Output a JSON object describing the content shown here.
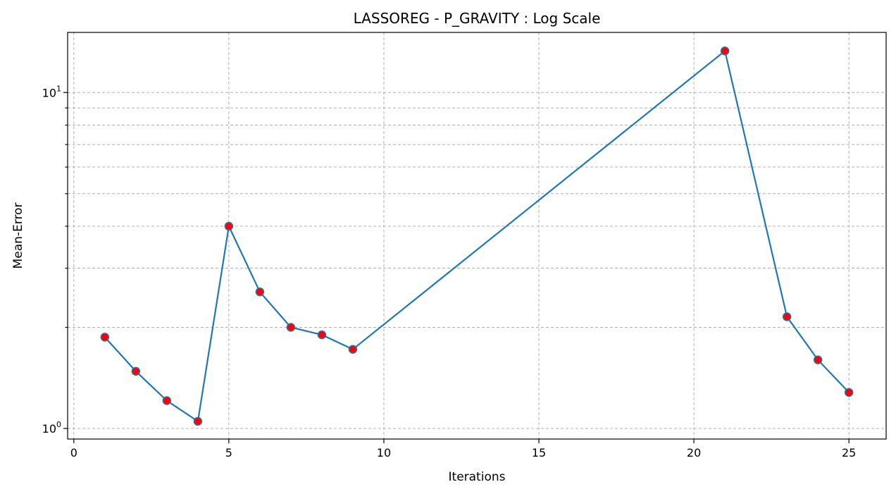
{
  "chart_data": {
    "type": "line",
    "title": "LASSOREG - P_GRAVITY : Log Scale",
    "xlabel": "Iterations",
    "ylabel": "Mean-Error",
    "yscale": "log",
    "xlim": [
      -0.2,
      26.2
    ],
    "ylim": [
      0.93,
      15.1
    ],
    "grid": true,
    "x_ticks": [
      0,
      5,
      10,
      15,
      20,
      25
    ],
    "x_tick_labels": [
      "0",
      "5",
      "10",
      "15",
      "20",
      "25"
    ],
    "y_major_ticks": [
      1,
      10
    ],
    "y_major_tick_labels": [
      {
        "base": "10",
        "exp": "0"
      },
      {
        "base": "10",
        "exp": "1"
      }
    ],
    "y_minor_ticks": [
      2,
      3,
      4,
      5,
      6,
      7,
      8,
      9
    ],
    "series": [
      {
        "x": [
          1,
          2,
          3,
          4,
          5,
          6,
          7,
          8,
          9,
          21,
          23,
          24,
          25
        ],
        "y": [
          1.87,
          1.48,
          1.21,
          1.05,
          4.0,
          2.55,
          2.0,
          1.9,
          1.72,
          13.3,
          2.15,
          1.6,
          1.28
        ]
      }
    ],
    "colors": {
      "line": "#1f77b4",
      "marker_face": "#ff0000",
      "marker_edge": "#1f77b4"
    }
  }
}
